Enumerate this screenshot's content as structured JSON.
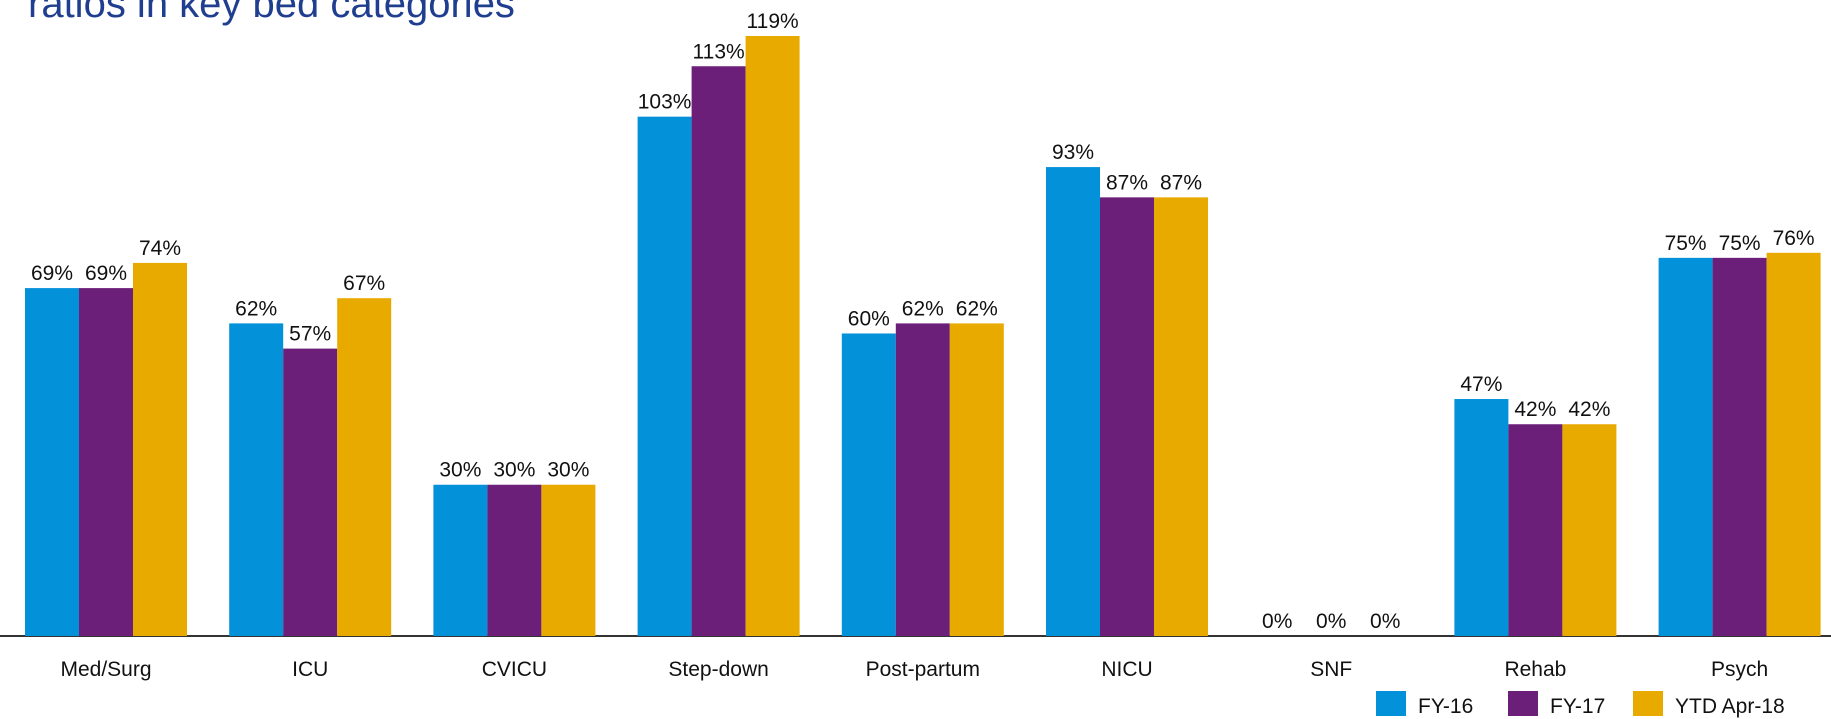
{
  "chart_data": {
    "type": "bar",
    "title": "ratios in key bed categories",
    "categories": [
      "Med/Surg",
      "ICU",
      "CVICU",
      "Step-down",
      "Post-partum",
      "NICU",
      "SNF",
      "Rehab",
      "Psych"
    ],
    "series": [
      {
        "name": "FY-16",
        "color": "#0391d9",
        "values": [
          69,
          62,
          30,
          103,
          60,
          93,
          0,
          47,
          75
        ],
        "labels": [
          "69%",
          "62%",
          "30%",
          "103%",
          "60%",
          "93%",
          "0%",
          "47%",
          "75%"
        ]
      },
      {
        "name": "FY-17",
        "color": "#6b1f78",
        "values": [
          69,
          57,
          30,
          113,
          62,
          87,
          0,
          42,
          75
        ],
        "labels": [
          "69%",
          "57%",
          "30%",
          "113%",
          "62%",
          "87%",
          "0%",
          "42%",
          "75%"
        ]
      },
      {
        "name": "YTD Apr-18",
        "color": "#e9aa00",
        "values": [
          74,
          67,
          30,
          119,
          62,
          87,
          0,
          42,
          76
        ],
        "labels": [
          "74%",
          "67%",
          "30%",
          "119%",
          "62%",
          "87%",
          "0%",
          "42%",
          "76%"
        ]
      }
    ],
    "ylim": [
      0,
      119
    ],
    "grid": false,
    "legend": "bottom-right"
  }
}
